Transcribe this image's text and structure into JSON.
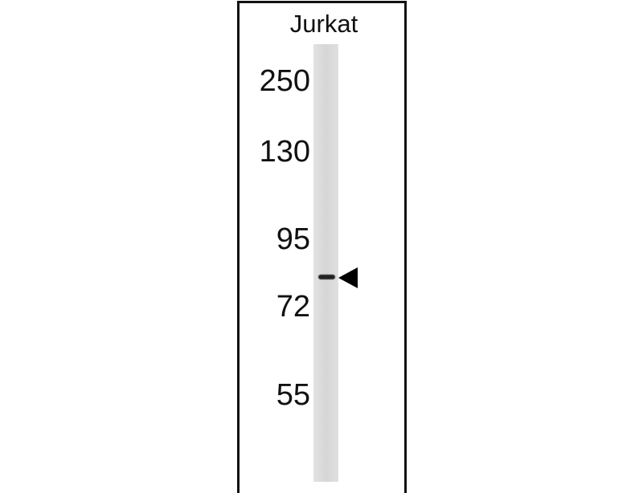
{
  "lane_label": "Jurkat",
  "markers": [
    "250",
    "130",
    "95",
    "72",
    "55"
  ],
  "band_indicator": "arrowhead-pointing-left"
}
